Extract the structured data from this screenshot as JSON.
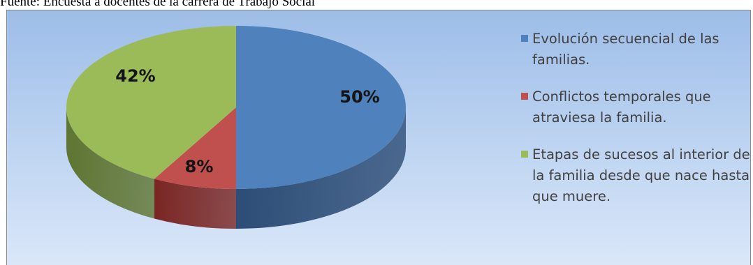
{
  "source_text": "Fuente: Encuesta a docentes de la carrera de Trabajo Social",
  "colors": {
    "series": [
      "#4f81bd",
      "#c0504d",
      "#9bbb59"
    ],
    "sides": [
      "#2d4d76",
      "#7a2623",
      "#5f7532"
    ]
  },
  "chart_data": {
    "type": "pie",
    "style": "3d",
    "legend_position": "right",
    "labels": [
      "Evolución secuencial de las familias.",
      "Conflictos temporales que atraviesa la familia.",
      "Etapas de sucesos al interior de la familia desde que nace hasta que muere."
    ],
    "values": [
      50,
      8,
      42
    ],
    "data_labels": [
      "50%",
      "8%",
      "42%"
    ]
  }
}
